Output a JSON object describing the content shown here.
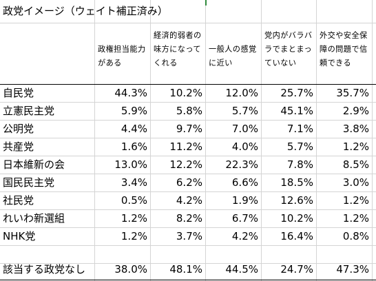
{
  "title": "政党イメージ（ウェイト補正済み）",
  "headers": [
    "政権担当能力がある",
    "経済的弱者の味方になってくれる",
    "一般人の感覚に近い",
    "党内がバラバラでまとまっていない",
    "外交や安全保障の問題で信頼できる"
  ],
  "rows": [
    {
      "party": "自民党",
      "values": [
        "44.3%",
        "10.2%",
        "12.0%",
        "25.7%",
        "35.7%"
      ]
    },
    {
      "party": "立憲民主党",
      "values": [
        "5.9%",
        "5.8%",
        "5.7%",
        "45.1%",
        "2.9%"
      ]
    },
    {
      "party": "公明党",
      "values": [
        "4.4%",
        "9.7%",
        "7.0%",
        "7.1%",
        "3.8%"
      ]
    },
    {
      "party": "共産党",
      "values": [
        "1.6%",
        "11.2%",
        "4.0%",
        "5.7%",
        "1.2%"
      ]
    },
    {
      "party": "日本維新の会",
      "values": [
        "13.0%",
        "12.2%",
        "22.3%",
        "7.8%",
        "8.5%"
      ]
    },
    {
      "party": "国民民主党",
      "values": [
        "3.4%",
        "6.2%",
        "6.6%",
        "18.5%",
        "3.0%"
      ]
    },
    {
      "party": "社民党",
      "values": [
        "0.5%",
        "4.2%",
        "1.9%",
        "12.6%",
        "1.2%"
      ]
    },
    {
      "party": "れいわ新選組",
      "values": [
        "1.2%",
        "8.2%",
        "6.7%",
        "10.2%",
        "1.2%"
      ]
    },
    {
      "party": "NHK党",
      "values": [
        "1.2%",
        "3.7%",
        "4.2%",
        "16.4%",
        "0.8%"
      ]
    },
    {
      "party": "該当する政党なし",
      "values": [
        "38.0%",
        "48.1%",
        "44.5%",
        "24.7%",
        "47.3%"
      ]
    }
  ]
}
